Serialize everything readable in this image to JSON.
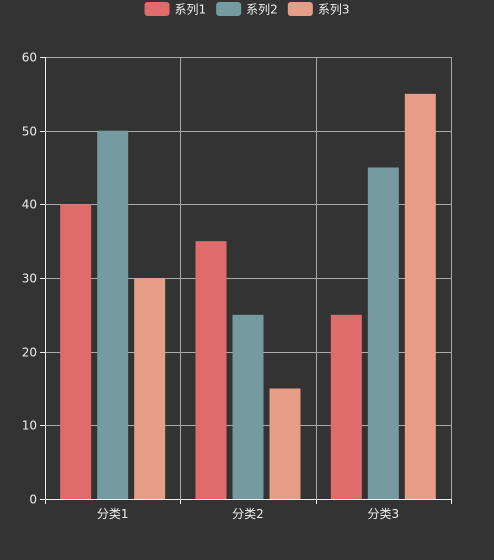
{
  "chart_data": {
    "type": "bar",
    "categories": [
      "分类1",
      "分类2",
      "分类3"
    ],
    "series": [
      {
        "name": "系列1",
        "values": [
          40,
          35,
          25
        ],
        "color": "#e06b6b"
      },
      {
        "name": "系列2",
        "values": [
          50,
          25,
          45
        ],
        "color": "#759aa0"
      },
      {
        "name": "系列3",
        "values": [
          30,
          15,
          55
        ],
        "color": "#e69d87"
      }
    ],
    "ylim": [
      0,
      60
    ],
    "yticks": [
      0,
      10,
      20,
      30,
      40,
      50,
      60
    ],
    "grid": true,
    "legend_position": "top-center",
    "colors": {
      "background": "#333333",
      "axis": "#eeeeee",
      "grid": "#aaaaaa",
      "text": "#eeeeee"
    }
  }
}
